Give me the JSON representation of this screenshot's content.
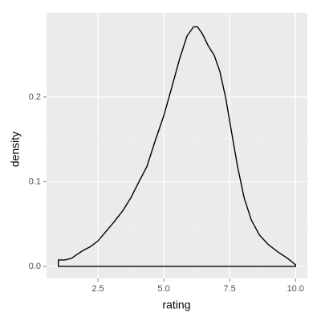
{
  "chart_data": {
    "type": "density",
    "x_label": "rating",
    "y_label": "density",
    "x": [
      1.0,
      1.0,
      1.25,
      1.5,
      1.7,
      1.95,
      2.2,
      2.5,
      2.8,
      3.1,
      3.45,
      3.75,
      4.05,
      4.36,
      4.66,
      5.0,
      5.3,
      5.6,
      5.88,
      6.13,
      6.28,
      6.46,
      6.68,
      6.92,
      7.13,
      7.35,
      7.56,
      7.8,
      8.05,
      8.32,
      8.63,
      8.96,
      9.33,
      9.7,
      10.0,
      10.0
    ],
    "values": [
      0,
      0.0076,
      0.0076,
      0.0095,
      0.014,
      0.019,
      0.023,
      0.03,
      0.041,
      0.052,
      0.066,
      0.081,
      0.0995,
      0.118,
      0.147,
      0.178,
      0.211,
      0.245,
      0.272,
      0.283,
      0.283,
      0.275,
      0.261,
      0.249,
      0.23,
      0.199,
      0.161,
      0.118,
      0.081,
      0.055,
      0.037,
      0.026,
      0.017,
      0.0095,
      0.002,
      0
    ],
    "color": "#000000",
    "panel_color": "#ebebeb",
    "xlim": [
      0.55,
      10.45
    ],
    "ylim": [
      -0.0143,
      0.2995
    ],
    "xticks": [
      2.5,
      {
        "value": 5,
        "label": "5.0"
      },
      7.5,
      {
        "value": 10,
        "label": "10.0"
      }
    ],
    "yticks": [
      {
        "value": 0,
        "label": "0.0"
      },
      0.1,
      0.2
    ],
    "grid": true,
    "minor_grid": true
  }
}
